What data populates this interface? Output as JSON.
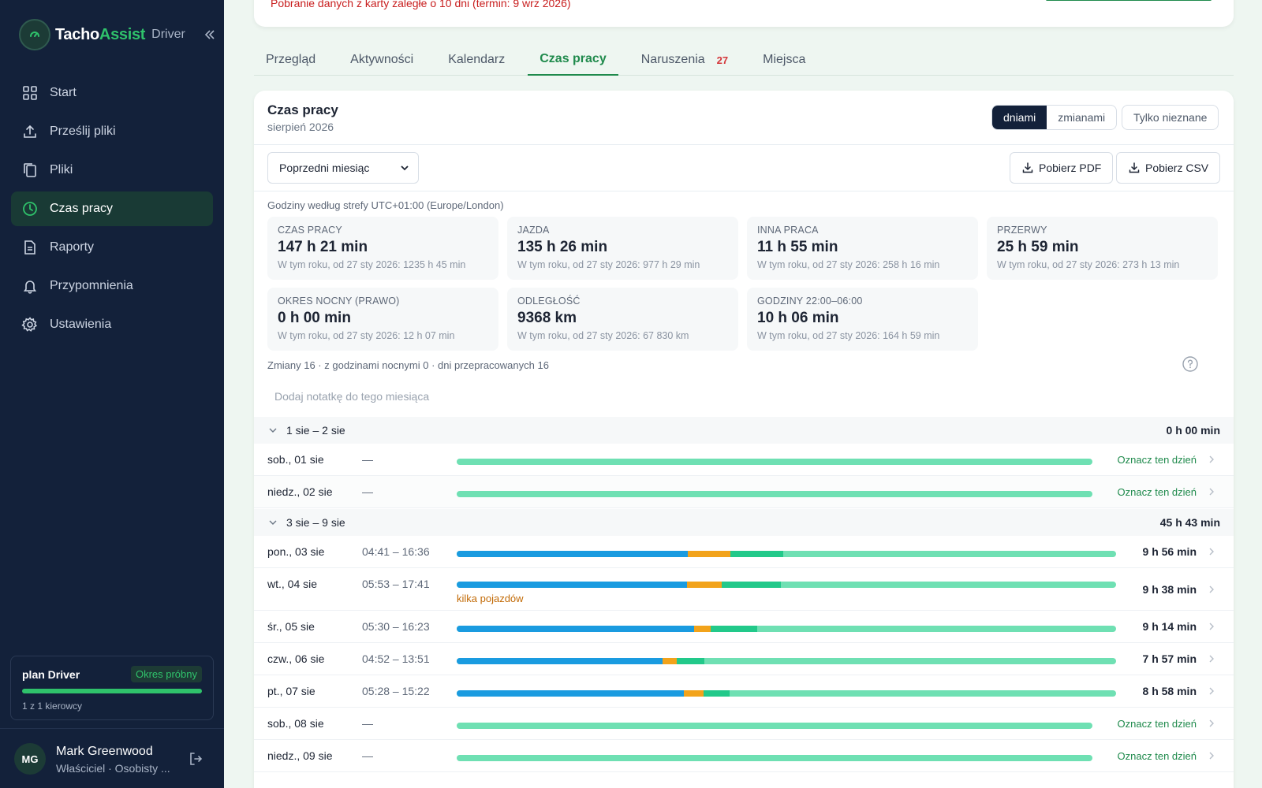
{
  "app": {
    "brand_main": "Tacho",
    "brand_accent": "Assist",
    "brand_sub": "Driver"
  },
  "sidebar": {
    "items": [
      {
        "label": "Start",
        "icon": "grid-icon"
      },
      {
        "label": "Prześlij pliki",
        "icon": "upload-icon"
      },
      {
        "label": "Pliki",
        "icon": "files-icon"
      },
      {
        "label": "Czas pracy",
        "icon": "clock-icon",
        "active": true
      },
      {
        "label": "Raporty",
        "icon": "document-icon"
      },
      {
        "label": "Przypomnienia",
        "icon": "bell-icon"
      },
      {
        "label": "Ustawienia",
        "icon": "gear-icon"
      }
    ],
    "plan": {
      "title": "plan Driver",
      "badge": "Okres próbny",
      "usage": "1 z 1 kierowcy",
      "usage_fraction": 1.0
    },
    "user": {
      "initials": "MG",
      "name": "Mark Greenwood",
      "role": "Właściciel · Osobisty ..."
    }
  },
  "banner": {
    "warning": "Pobranie danych z karty zaległe o 10 dni (termin: 9 wrz 2026)"
  },
  "tabs": [
    {
      "label": "Przegląd"
    },
    {
      "label": "Aktywności"
    },
    {
      "label": "Kalendarz"
    },
    {
      "label": "Czas pracy",
      "active": true
    },
    {
      "label": "Naruszenia",
      "badge": "27"
    },
    {
      "label": "Miejsca"
    }
  ],
  "card": {
    "title": "Czas pracy",
    "subtitle": "sierpień 2026",
    "view_days": "dniami",
    "view_shifts": "zmianami",
    "only_unknown": "Tylko nieznane",
    "period_select": "Poprzedni miesiąc",
    "pdf_button": "Pobierz PDF",
    "csv_button": "Pobierz CSV",
    "timezone": "Godziny według strefy UTC+01:00 (Europe/London)",
    "shifts_summary": "Zmiany 16 · z godzinami nocnymi 0 · dni przepracowanych 16",
    "note_placeholder": "Dodaj notatkę do tego miesiąca"
  },
  "stats": [
    {
      "label": "Czas pracy",
      "value": "147 h 21 min",
      "sub": "W tym roku, od 27 sty 2026: 1235 h 45 min"
    },
    {
      "label": "Jazda",
      "value": "135 h 26 min",
      "sub": "W tym roku, od 27 sty 2026: 977 h 29 min"
    },
    {
      "label": "Inna praca",
      "value": "11 h 55 min",
      "sub": "W tym roku, od 27 sty 2026: 258 h 16 min"
    },
    {
      "label": "Przerwy",
      "value": "25 h 59 min",
      "sub": "W tym roku, od 27 sty 2026: 273 h 13 min"
    },
    {
      "label": "Okres nocny (prawo)",
      "value": "0 h 00 min",
      "sub": "W tym roku, od 27 sty 2026: 12 h 07 min"
    },
    {
      "label": "Odległość",
      "value": "9368 km",
      "sub": "W tym roku, od 27 sty 2026: 67 830 km"
    },
    {
      "label": "Godziny 22:00–06:00",
      "value": "10 h 06 min",
      "sub": "W tym roku, od 27 sty 2026: 164 h 59 min"
    }
  ],
  "colors": {
    "drive": "#1a9be0",
    "other_work": "#f2a31b",
    "availability": "#22c98a",
    "rest": "#6fe0b3"
  },
  "weeks": [
    {
      "label": "1 sie – 2 sie",
      "total": "0 h 00 min",
      "days": [
        {
          "label": "sob., 01 sie",
          "time": "—",
          "mark": "Oznacz ten dzień"
        },
        {
          "label": "niedz., 02 sie",
          "time": "—",
          "mark": "Oznacz ten dzień"
        }
      ]
    },
    {
      "label": "3 sie – 9 sie",
      "total": "45 h 43 min",
      "days": [
        {
          "label": "pon., 03 sie",
          "time": "04:41 – 16:36",
          "total": "9 h 56 min",
          "segments": [
            0.35,
            0.065,
            0.08
          ]
        },
        {
          "label": "wt., 04 sie",
          "time": "05:53 – 17:41",
          "total": "9 h 38 min",
          "segments": [
            0.349,
            0.053,
            0.09
          ],
          "note": "kilka pojazdów"
        },
        {
          "label": "śr., 05 sie",
          "time": "05:30 – 16:23",
          "total": "9 h 14 min",
          "segments": [
            0.36,
            0.025,
            0.07
          ]
        },
        {
          "label": "czw., 06 sie",
          "time": "04:52 – 13:51",
          "total": "7 h 57 min",
          "segments": [
            0.312,
            0.021,
            0.042
          ]
        },
        {
          "label": "pt., 07 sie",
          "time": "05:28 – 15:22",
          "total": "8 h 58 min",
          "segments": [
            0.344,
            0.03,
            0.039
          ]
        },
        {
          "label": "sob., 08 sie",
          "time": "—",
          "mark": "Oznacz ten dzień"
        },
        {
          "label": "niedz., 09 sie",
          "time": "—",
          "mark": "Oznacz ten dzień"
        }
      ]
    }
  ]
}
